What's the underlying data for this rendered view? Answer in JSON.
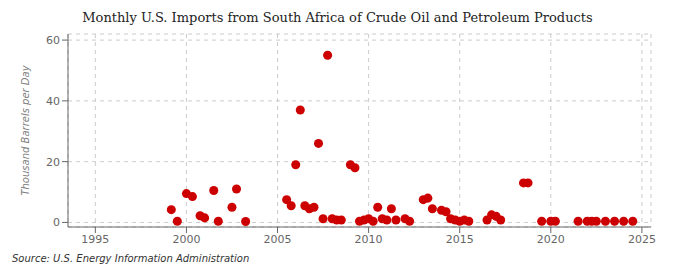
{
  "chart_data": {
    "type": "scatter",
    "title": "Monthly U.S. Imports from South Africa of Crude Oil and Petroleum Products",
    "y_label": "Thousand Barrels per Day",
    "annotations": [
      "Source: U.S. Energy Information Administration"
    ],
    "x": [
      1999.17,
      1999.5,
      2000.0,
      2000.33,
      2000.75,
      2001.0,
      2001.5,
      2001.75,
      2002.5,
      2002.75,
      2003.25,
      2005.5,
      2005.75,
      2006.0,
      2006.25,
      2006.5,
      2006.75,
      2007.0,
      2007.25,
      2007.5,
      2007.75,
      2008.0,
      2008.25,
      2008.5,
      2009.0,
      2009.25,
      2009.5,
      2009.75,
      2010.0,
      2010.25,
      2010.5,
      2010.75,
      2011.0,
      2011.25,
      2011.5,
      2012.0,
      2012.25,
      2013.0,
      2013.25,
      2013.5,
      2014.0,
      2014.25,
      2014.5,
      2014.75,
      2015.0,
      2015.25,
      2015.5,
      2016.5,
      2016.75,
      2017.0,
      2017.25,
      2018.5,
      2018.75,
      2019.5,
      2020.0,
      2020.25,
      2021.5,
      2022.0,
      2022.25,
      2022.5,
      2023.0,
      2023.5,
      2024.0,
      2024.5
    ],
    "values": [
      4.2,
      0.4,
      9.5,
      8.5,
      2.2,
      1.5,
      10.5,
      0.4,
      5.0,
      11.0,
      0.3,
      7.5,
      5.5,
      19.0,
      37.0,
      5.5,
      4.5,
      5.0,
      26.0,
      1.2,
      55.0,
      1.2,
      0.8,
      0.8,
      19.0,
      18.0,
      0.4,
      0.8,
      1.2,
      0.4,
      5.0,
      1.2,
      0.8,
      4.5,
      0.8,
      1.2,
      0.4,
      7.5,
      8.0,
      4.5,
      4.0,
      3.5,
      1.2,
      0.8,
      0.4,
      0.8,
      0.4,
      0.8,
      2.5,
      2.0,
      0.8,
      13.0,
      13.0,
      0.4,
      0.4,
      0.4,
      0.4,
      0.4,
      0.4,
      0.4,
      0.4,
      0.4,
      0.4,
      0.4
    ],
    "color": "#cc0000",
    "xlim": [
      1993.5,
      2025.5
    ],
    "ylim": [
      -1.5,
      62
    ],
    "xticks": [
      1995,
      2000,
      2005,
      2010,
      2015,
      2020,
      2025
    ],
    "yticks": [
      0,
      20,
      40,
      60
    ],
    "grid": true
  }
}
